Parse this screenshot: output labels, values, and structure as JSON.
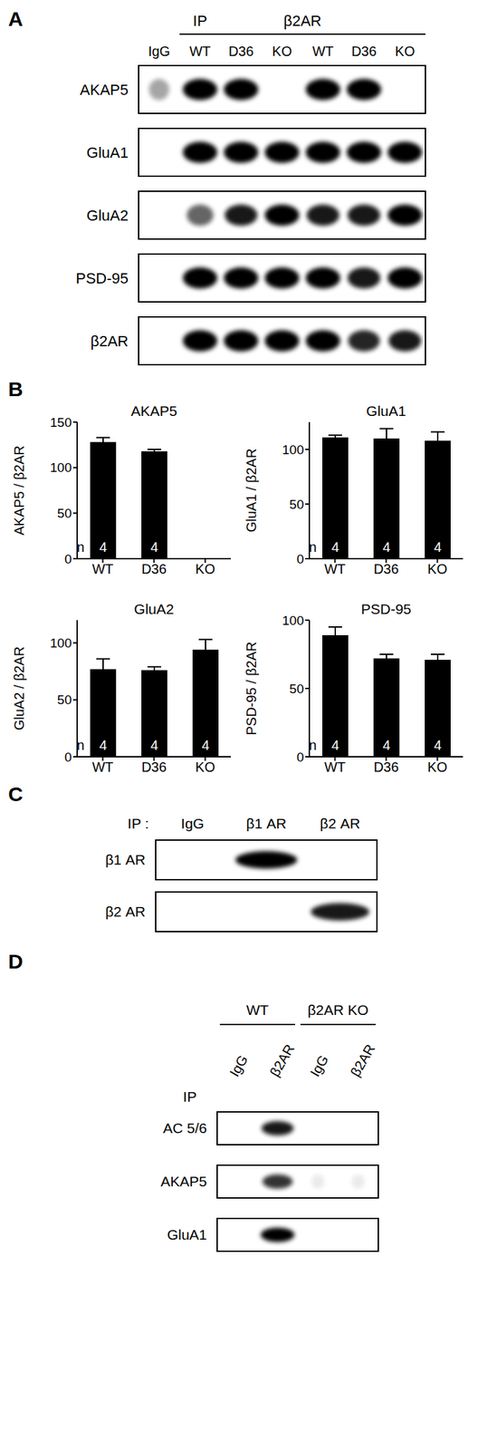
{
  "panel_A": {
    "label": "A",
    "header": [
      "IP",
      "β2AR"
    ],
    "lanes": [
      "IgG",
      "WT",
      "D36",
      "KO",
      "WT",
      "D36",
      "KO"
    ],
    "rows": [
      {
        "name": "AKAP5",
        "bands": [
          0.35,
          1,
          1,
          0,
          1,
          1,
          0
        ]
      },
      {
        "name": "GluA1",
        "bands": [
          0,
          1,
          1,
          1,
          1,
          1,
          1
        ]
      },
      {
        "name": "GluA2",
        "bands": [
          0,
          0.6,
          0.9,
          1,
          0.9,
          0.9,
          1
        ]
      },
      {
        "name": "PSD-95",
        "bands": [
          0,
          1,
          1,
          1,
          1,
          0.9,
          1
        ]
      },
      {
        "name": "β2AR",
        "bands": [
          0,
          1,
          1,
          1,
          1,
          0.85,
          0.9
        ]
      }
    ]
  },
  "panel_B": {
    "label": "B"
  },
  "chart_data": [
    {
      "type": "bar",
      "title": "AKAP5",
      "y_label": "AKAP5 / β2AR",
      "categories": [
        "WT",
        "D36",
        "KO"
      ],
      "values": [
        128,
        118,
        0
      ],
      "errors": [
        5,
        2,
        0
      ],
      "sample_sizes": [
        4,
        4,
        4
      ],
      "n_label": "n",
      "ylim": [
        0,
        150
      ],
      "yticks": [
        0,
        50,
        100,
        150
      ],
      "color": "#000000"
    },
    {
      "type": "bar",
      "title": "GluA1",
      "y_label": "GluA1 / β2AR",
      "categories": [
        "WT",
        "D36",
        "KO"
      ],
      "values": [
        111,
        110,
        108
      ],
      "errors": [
        2,
        9,
        8
      ],
      "sample_sizes": [
        4,
        4,
        4
      ],
      "n_label": "n",
      "ylim": [
        0,
        125
      ],
      "yticks": [
        0,
        50,
        100
      ],
      "color": "#000000"
    },
    {
      "type": "bar",
      "title": "GluA2",
      "y_label": "GluA2 / β2AR",
      "categories": [
        "WT",
        "D36",
        "KO"
      ],
      "values": [
        77,
        76,
        94
      ],
      "errors": [
        9,
        3,
        9
      ],
      "sample_sizes": [
        4,
        4,
        4
      ],
      "n_label": "n",
      "ylim": [
        0,
        120
      ],
      "yticks": [
        0,
        50,
        100
      ],
      "color": "#000000"
    },
    {
      "type": "bar",
      "title": "PSD-95",
      "y_label": "PSD-95 / β2AR",
      "categories": [
        "WT",
        "D36",
        "KO"
      ],
      "values": [
        89,
        72,
        71
      ],
      "errors": [
        6,
        3,
        4
      ],
      "sample_sizes": [
        4,
        4,
        4
      ],
      "n_label": "n",
      "ylim": [
        0,
        100
      ],
      "yticks": [
        0,
        50,
        100
      ],
      "color": "#000000"
    }
  ],
  "panel_C": {
    "label": "C",
    "ip_label": "IP :",
    "lanes": [
      "IgG",
      "β1 AR",
      "β2 AR"
    ],
    "rows": [
      {
        "name": "β1 AR",
        "bands": [
          0,
          1,
          0
        ]
      },
      {
        "name": "β2 AR",
        "bands": [
          0,
          0,
          0.9
        ]
      }
    ]
  },
  "panel_D": {
    "label": "D",
    "groups": [
      "WT",
      "β2AR KO"
    ],
    "lanes": [
      "IgG",
      "β2AR",
      "IgG",
      "β2AR"
    ],
    "ip_label": "IP",
    "rows": [
      {
        "name": "AC 5/6",
        "bands": [
          0,
          0.9,
          0,
          0
        ]
      },
      {
        "name": "AKAP5",
        "bands": [
          0,
          0.8,
          0.08,
          0.08
        ]
      },
      {
        "name": "GluA1",
        "bands": [
          0,
          1,
          0,
          0
        ]
      }
    ]
  }
}
